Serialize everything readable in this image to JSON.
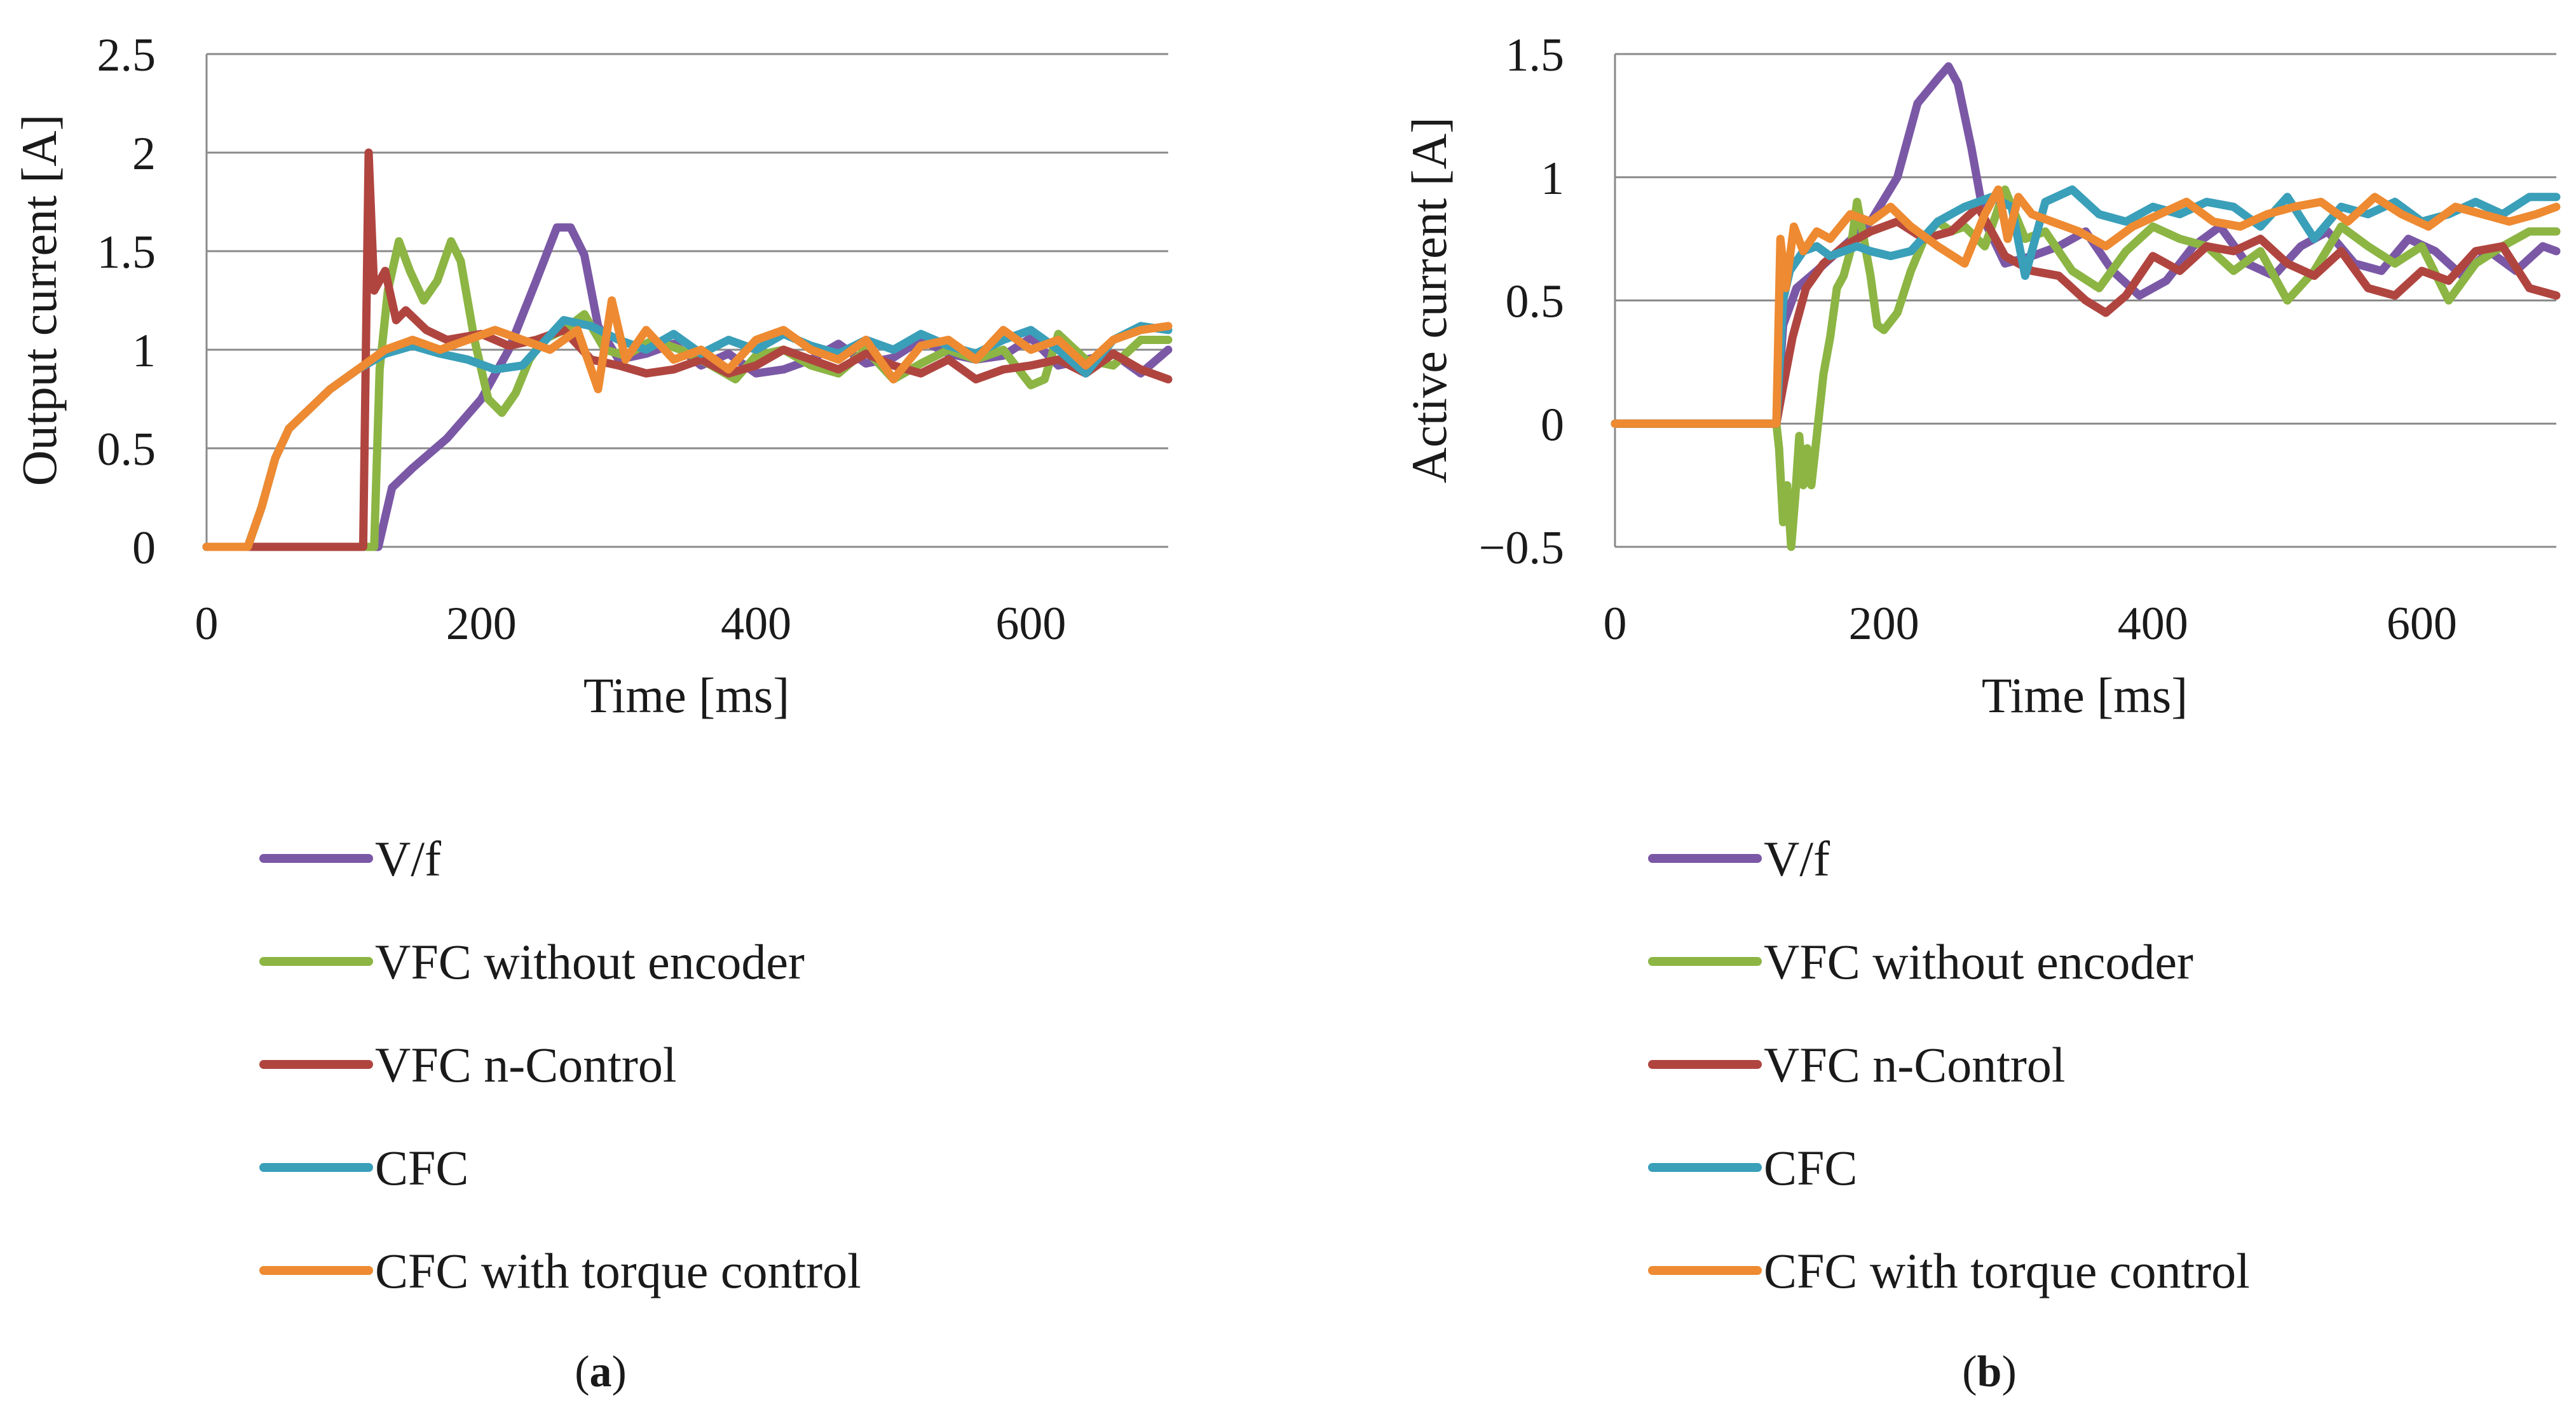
{
  "colors": {
    "V/f": "#7b58a6",
    "VFC without encoder": "#8cb544",
    "VFC n-Control": "#b04540",
    "CFC": "#3a9fb9",
    "CFC with torque control": "#ee8a31"
  },
  "chart_data": [
    {
      "id": "a",
      "type": "line",
      "caption": {
        "pre": "(",
        "letter": "a",
        "post": ")"
      },
      "xlabel": "Time [ms]",
      "ylabel": "Output current [A]",
      "xlim": [
        0,
        700
      ],
      "ylim": [
        0,
        2.5
      ],
      "xticks": [
        0,
        200,
        400,
        600
      ],
      "xtick_labels": [
        "0",
        "200",
        "400",
        "600"
      ],
      "yticks": [
        0,
        0.5,
        1,
        1.5,
        2,
        2.5
      ],
      "ytick_labels": [
        "0",
        "0.5",
        "1",
        "1.5",
        "2",
        "2.5"
      ],
      "legend_position": "below",
      "series": [
        {
          "name": "V/f",
          "x": [
            0,
            115,
            125,
            135,
            150,
            175,
            200,
            220,
            240,
            255,
            265,
            275,
            285,
            300,
            320,
            340,
            360,
            380,
            400,
            420,
            440,
            460,
            480,
            500,
            520,
            540,
            560,
            580,
            600,
            620,
            640,
            660,
            680,
            700
          ],
          "y": [
            0,
            0,
            0,
            0.3,
            0.4,
            0.55,
            0.75,
            1.0,
            1.35,
            1.62,
            1.62,
            1.48,
            1.12,
            0.95,
            0.98,
            1.03,
            0.92,
            0.98,
            0.88,
            0.9,
            0.95,
            1.03,
            0.93,
            0.96,
            1.05,
            0.98,
            0.95,
            0.97,
            1.06,
            0.92,
            0.95,
            0.98,
            0.88,
            1.0
          ]
        },
        {
          "name": "VFC without encoder",
          "x": [
            0,
            115,
            122,
            126,
            132,
            140,
            148,
            158,
            168,
            178,
            185,
            195,
            205,
            215,
            225,
            235,
            245,
            260,
            275,
            290,
            305,
            325,
            345,
            365,
            385,
            400,
            420,
            440,
            460,
            480,
            500,
            520,
            540,
            560,
            580,
            600,
            610,
            620,
            640,
            660,
            680,
            700
          ],
          "y": [
            0,
            0,
            0,
            0.9,
            1.3,
            1.55,
            1.4,
            1.25,
            1.35,
            1.55,
            1.45,
            1.05,
            0.75,
            0.68,
            0.78,
            0.95,
            1.05,
            1.1,
            1.18,
            1.0,
            0.97,
            1.05,
            1.0,
            0.93,
            0.85,
            0.97,
            1.0,
            0.92,
            0.88,
            1.0,
            0.85,
            0.93,
            1.0,
            0.95,
            1.0,
            0.82,
            0.85,
            1.08,
            0.95,
            0.92,
            1.05,
            1.05
          ]
        },
        {
          "name": "VFC n-Control",
          "x": [
            0,
            114,
            118,
            122,
            130,
            138,
            145,
            160,
            175,
            200,
            220,
            240,
            260,
            280,
            300,
            320,
            340,
            360,
            380,
            400,
            420,
            440,
            460,
            480,
            500,
            520,
            540,
            560,
            580,
            600,
            620,
            640,
            660,
            680,
            700
          ],
          "y": [
            0,
            0,
            2.0,
            1.3,
            1.4,
            1.15,
            1.2,
            1.1,
            1.05,
            1.08,
            1.02,
            1.05,
            1.1,
            0.95,
            0.92,
            0.88,
            0.9,
            0.95,
            0.88,
            0.92,
            1.0,
            0.95,
            0.9,
            0.98,
            0.92,
            0.88,
            0.95,
            0.85,
            0.9,
            0.92,
            0.95,
            0.88,
            0.98,
            0.9,
            0.85
          ]
        },
        {
          "name": "CFC",
          "x": [
            0,
            30,
            40,
            50,
            60,
            75,
            90,
            110,
            130,
            150,
            170,
            190,
            210,
            230,
            260,
            280,
            300,
            320,
            340,
            360,
            380,
            400,
            420,
            440,
            460,
            480,
            500,
            520,
            540,
            560,
            580,
            600,
            620,
            640,
            660,
            680,
            700
          ],
          "y": [
            0,
            0,
            0.2,
            0.45,
            0.6,
            0.7,
            0.8,
            0.9,
            0.98,
            1.02,
            0.98,
            0.95,
            0.9,
            0.92,
            1.15,
            1.12,
            1.05,
            1.0,
            1.08,
            0.98,
            1.05,
            1.0,
            1.08,
            1.02,
            0.98,
            1.05,
            1.0,
            1.08,
            1.02,
            0.98,
            1.05,
            1.1,
            1.0,
            0.88,
            1.05,
            1.12,
            1.1
          ]
        },
        {
          "name": "CFC with torque control",
          "x": [
            0,
            30,
            40,
            50,
            60,
            75,
            90,
            110,
            130,
            150,
            170,
            190,
            210,
            230,
            250,
            270,
            285,
            295,
            305,
            320,
            340,
            360,
            380,
            400,
            420,
            440,
            460,
            480,
            500,
            520,
            540,
            560,
            580,
            600,
            620,
            640,
            660,
            680,
            700
          ],
          "y": [
            0,
            0,
            0.2,
            0.45,
            0.6,
            0.7,
            0.8,
            0.9,
            1.0,
            1.05,
            1.0,
            1.05,
            1.1,
            1.05,
            1.0,
            1.1,
            0.8,
            1.25,
            0.95,
            1.1,
            0.95,
            1.0,
            0.9,
            1.05,
            1.1,
            1.0,
            0.95,
            1.05,
            0.85,
            1.02,
            1.05,
            0.95,
            1.1,
            1.0,
            1.05,
            0.92,
            1.05,
            1.1,
            1.12
          ]
        }
      ]
    },
    {
      "id": "b",
      "type": "line",
      "caption": {
        "pre": "(",
        "letter": "b",
        "post": ")"
      },
      "xlabel": "Time [ms]",
      "ylabel": "Active current [A]",
      "xlim": [
        0,
        700
      ],
      "ylim": [
        -0.5,
        1.5
      ],
      "xticks": [
        0,
        200,
        400,
        600
      ],
      "xtick_labels": [
        "0",
        "200",
        "400",
        "600"
      ],
      "yticks": [
        -0.5,
        0,
        0.5,
        1,
        1.5
      ],
      "ytick_labels": [
        "−0.5",
        "0",
        "0.5",
        "1",
        "1.5"
      ],
      "legend_position": "below",
      "series": [
        {
          "name": "V/f",
          "x": [
            0,
            120,
            125,
            135,
            150,
            170,
            190,
            210,
            225,
            240,
            248,
            255,
            265,
            275,
            290,
            310,
            330,
            350,
            370,
            390,
            410,
            430,
            450,
            470,
            490,
            510,
            530,
            550,
            570,
            590,
            610,
            630,
            650,
            670,
            690,
            700
          ],
          "y": [
            0,
            0,
            0.4,
            0.55,
            0.62,
            0.72,
            0.82,
            1.0,
            1.3,
            1.4,
            1.45,
            1.38,
            1.12,
            0.82,
            0.65,
            0.68,
            0.72,
            0.78,
            0.62,
            0.52,
            0.58,
            0.72,
            0.8,
            0.65,
            0.6,
            0.72,
            0.78,
            0.65,
            0.62,
            0.75,
            0.7,
            0.6,
            0.7,
            0.62,
            0.72,
            0.7
          ]
        },
        {
          "name": "VFC without encoder",
          "x": [
            0,
            120,
            122,
            125,
            128,
            131,
            134,
            137,
            140,
            143,
            146,
            150,
            155,
            160,
            165,
            170,
            175,
            180,
            185,
            190,
            195,
            200,
            210,
            220,
            230,
            240,
            250,
            260,
            275,
            290,
            305,
            320,
            340,
            360,
            380,
            400,
            420,
            440,
            460,
            480,
            500,
            520,
            540,
            560,
            580,
            600,
            620,
            640,
            660,
            680,
            700
          ],
          "y": [
            0,
            0,
            -0.1,
            -0.4,
            -0.25,
            -0.5,
            -0.3,
            -0.05,
            -0.25,
            -0.1,
            -0.25,
            -0.05,
            0.2,
            0.35,
            0.55,
            0.6,
            0.7,
            0.9,
            0.75,
            0.6,
            0.4,
            0.38,
            0.45,
            0.62,
            0.75,
            0.82,
            0.78,
            0.8,
            0.72,
            0.95,
            0.75,
            0.78,
            0.62,
            0.55,
            0.7,
            0.8,
            0.75,
            0.72,
            0.62,
            0.7,
            0.5,
            0.62,
            0.8,
            0.72,
            0.65,
            0.72,
            0.5,
            0.65,
            0.72,
            0.78,
            0.78
          ]
        },
        {
          "name": "VFC n-Control",
          "x": [
            0,
            120,
            125,
            132,
            142,
            155,
            170,
            190,
            210,
            230,
            250,
            270,
            290,
            310,
            330,
            350,
            365,
            380,
            400,
            420,
            440,
            460,
            480,
            500,
            520,
            540,
            560,
            580,
            600,
            620,
            640,
            660,
            680,
            700
          ],
          "y": [
            0,
            0,
            0.15,
            0.35,
            0.55,
            0.65,
            0.72,
            0.78,
            0.82,
            0.75,
            0.78,
            0.88,
            0.68,
            0.62,
            0.6,
            0.5,
            0.45,
            0.52,
            0.68,
            0.62,
            0.72,
            0.7,
            0.75,
            0.65,
            0.6,
            0.7,
            0.55,
            0.52,
            0.62,
            0.58,
            0.7,
            0.72,
            0.55,
            0.52
          ]
        },
        {
          "name": "CFC",
          "x": [
            0,
            120,
            125,
            130,
            140,
            150,
            160,
            170,
            180,
            190,
            205,
            220,
            240,
            260,
            280,
            295,
            305,
            320,
            340,
            360,
            380,
            400,
            420,
            440,
            460,
            480,
            500,
            520,
            540,
            560,
            580,
            600,
            620,
            640,
            660,
            680,
            700
          ],
          "y": [
            0,
            0,
            0.5,
            0.62,
            0.7,
            0.72,
            0.68,
            0.7,
            0.72,
            0.7,
            0.68,
            0.7,
            0.82,
            0.88,
            0.92,
            0.88,
            0.6,
            0.9,
            0.95,
            0.85,
            0.82,
            0.88,
            0.85,
            0.9,
            0.88,
            0.8,
            0.92,
            0.75,
            0.88,
            0.85,
            0.9,
            0.82,
            0.85,
            0.9,
            0.85,
            0.92,
            0.92
          ]
        },
        {
          "name": "CFC with torque control",
          "x": [
            0,
            120,
            123,
            127,
            133,
            140,
            150,
            160,
            175,
            190,
            205,
            220,
            240,
            260,
            275,
            285,
            292,
            300,
            310,
            325,
            345,
            365,
            385,
            405,
            425,
            445,
            465,
            485,
            505,
            525,
            545,
            565,
            585,
            605,
            625,
            645,
            665,
            685,
            700
          ],
          "y": [
            0,
            0,
            0.75,
            0.55,
            0.8,
            0.7,
            0.78,
            0.75,
            0.85,
            0.82,
            0.88,
            0.8,
            0.72,
            0.65,
            0.85,
            0.95,
            0.75,
            0.92,
            0.85,
            0.82,
            0.78,
            0.72,
            0.8,
            0.85,
            0.9,
            0.82,
            0.8,
            0.85,
            0.88,
            0.9,
            0.82,
            0.92,
            0.85,
            0.8,
            0.88,
            0.85,
            0.82,
            0.85,
            0.88
          ]
        }
      ]
    }
  ]
}
